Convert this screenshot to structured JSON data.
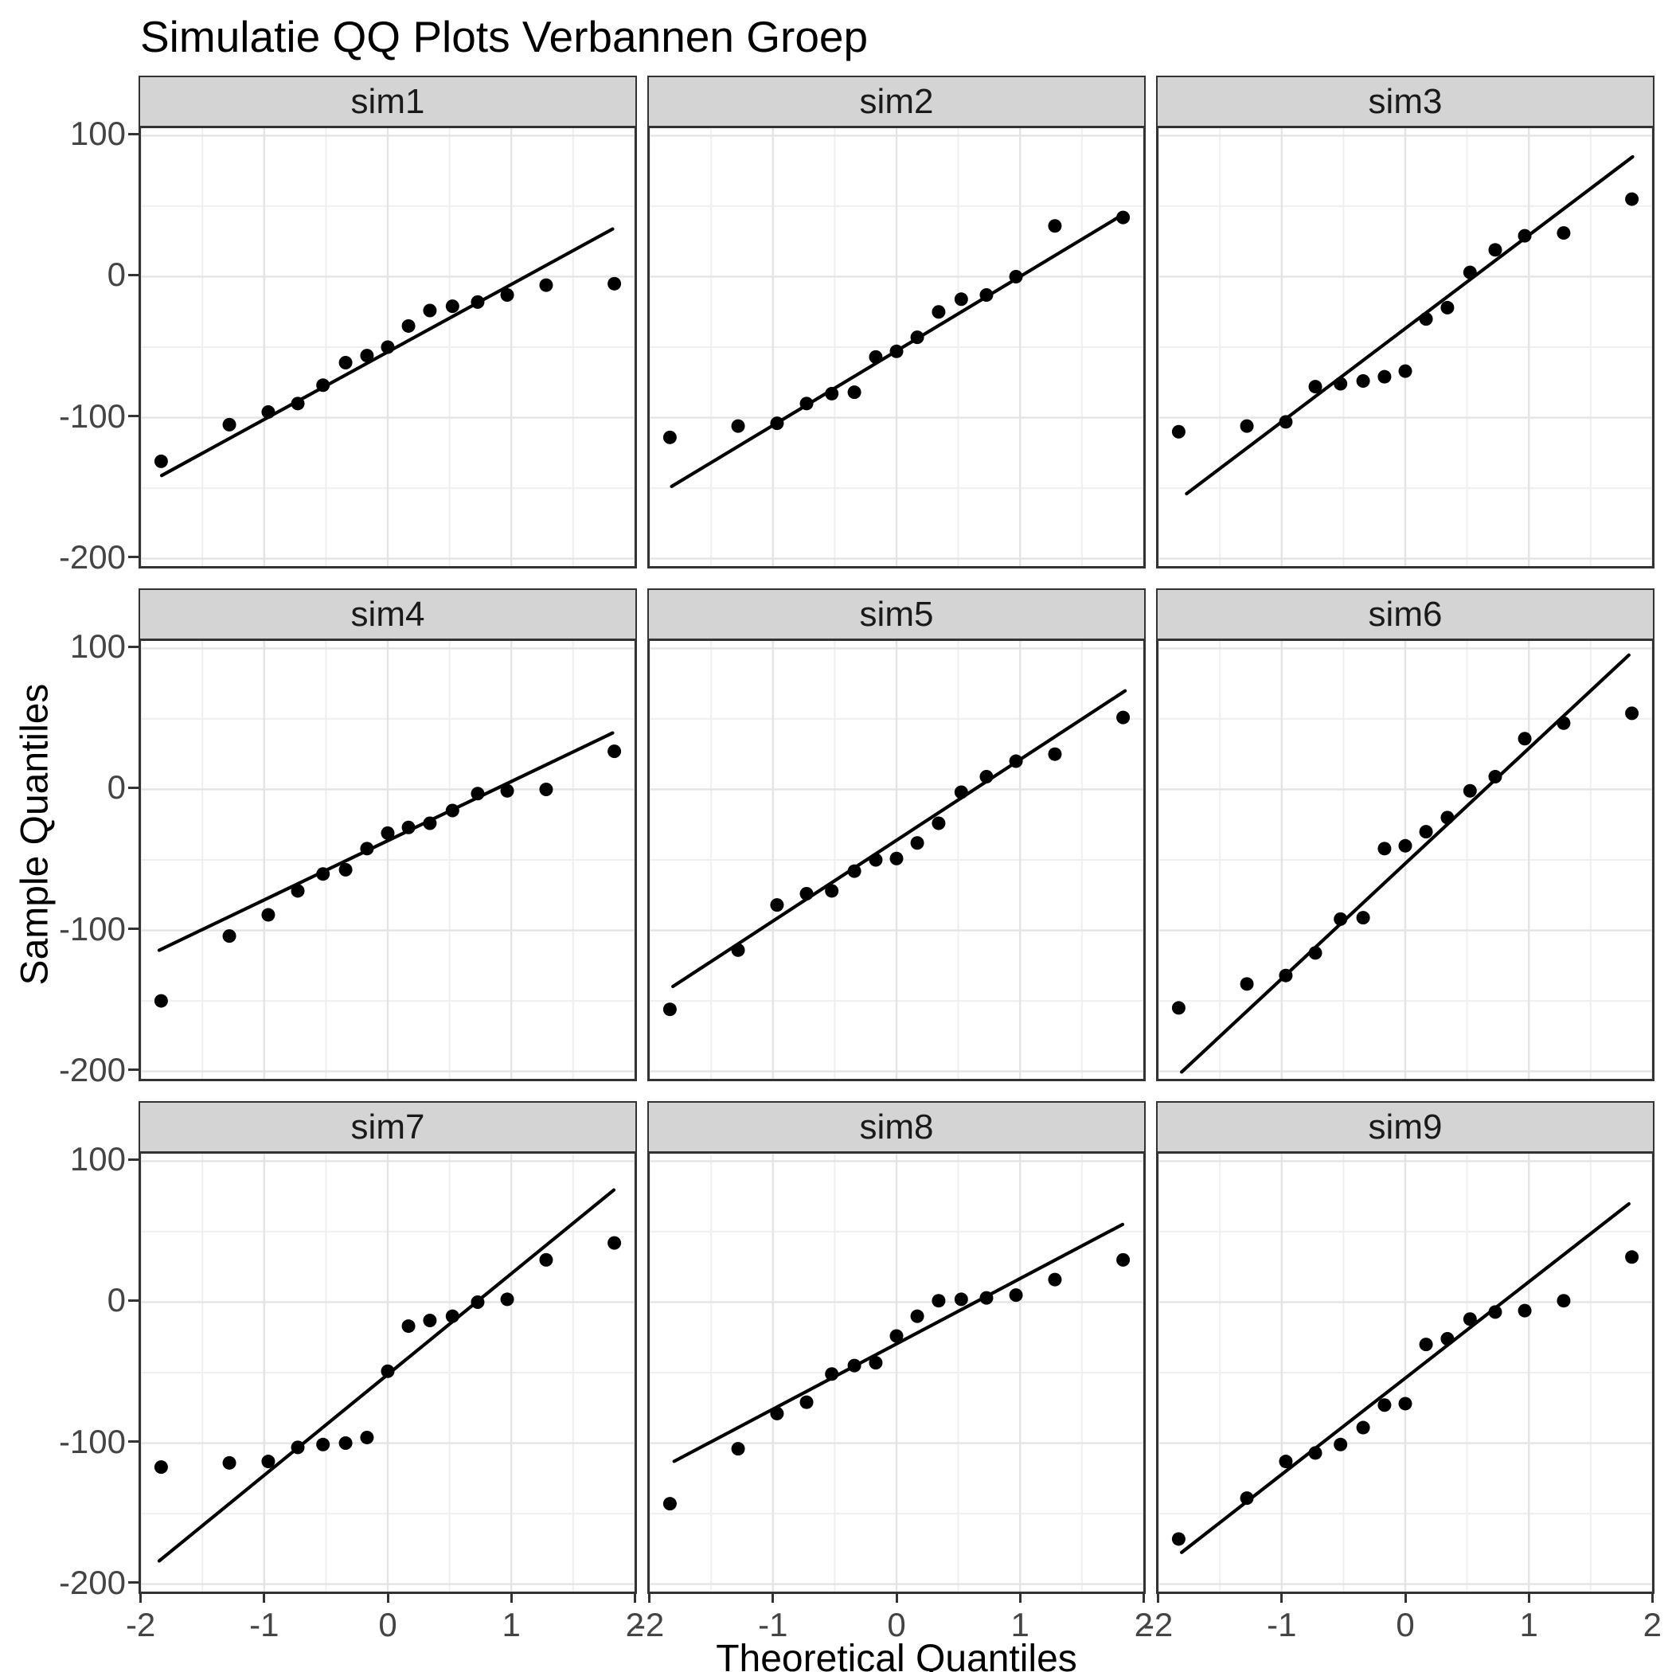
{
  "title": "Simulatie QQ Plots Verbannen Groep",
  "axes": {
    "x_title": "Theoretical Quantiles",
    "y_title": "Sample Quantiles",
    "x_tick_labels": [
      "-2",
      "-1",
      "0",
      "1",
      "2"
    ],
    "x_tick_values": [
      -2,
      -1,
      0,
      1,
      2
    ],
    "y_tick_labels": [
      "100",
      "0",
      "-100",
      "-200"
    ],
    "y_tick_values": [
      100,
      0,
      -100,
      -200
    ],
    "x_minor": [
      -1.5,
      -0.5,
      0.5,
      1.5
    ],
    "y_minor": [
      50,
      -50,
      -150
    ],
    "x_range": [
      -2.017,
      2.017
    ],
    "y_range": [
      -207,
      107
    ],
    "grid": "on",
    "x_labels_bottom_row_only": true,
    "y_labels_left_column_only": true
  },
  "style": {
    "background": "#FFFFFF",
    "strip_fill": "#D4D4D4",
    "strip_text": "#1A1A1A",
    "panel_border": "#333333",
    "grid_major": "#E4E4E4",
    "grid_minor": "#EFEFEF",
    "point_color": "#000000",
    "line_color": "#000000",
    "tick_text": "#444444"
  },
  "chart_data": {
    "type": "scatter",
    "subtype": "qq-plot-facets",
    "title": "Simulatie QQ Plots Verbannen Groep",
    "xlabel": "Theoretical Quantiles",
    "ylabel": "Sample Quantiles",
    "legend": "none",
    "theoretical_quantiles": [
      -1.834,
      -1.282,
      -0.967,
      -0.728,
      -0.524,
      -0.341,
      -0.168,
      0,
      0.168,
      0.341,
      0.524,
      0.728,
      0.967,
      1.282,
      1.834
    ],
    "facets": [
      {
        "label": "sim1",
        "sample_quantiles": [
          -131,
          -105,
          -96,
          -90,
          -77,
          -61,
          -56,
          -50,
          -35,
          -24,
          -21,
          -18,
          -13,
          -6,
          -5
        ],
        "line": {
          "slope": 47.9,
          "intercept": -53.4,
          "x1": -1.83,
          "x2": 1.82
        }
      },
      {
        "label": "sim2",
        "sample_quantiles": [
          -114,
          -106,
          -104,
          -90,
          -83,
          -82,
          -57,
          -53,
          -43,
          -25,
          -16,
          -13,
          0,
          36,
          42
        ],
        "line": {
          "slope": 52.8,
          "intercept": -52.7,
          "x1": -1.82,
          "x2": 1.81
        }
      },
      {
        "label": "sim3",
        "sample_quantiles": [
          -110,
          -106,
          -103,
          -78,
          -76,
          -74,
          -71,
          -67,
          -30,
          -22,
          3,
          19,
          29,
          31,
          55
        ],
        "line": {
          "slope": 66.2,
          "intercept": -36.8,
          "x1": -1.77,
          "x2": 1.84
        }
      },
      {
        "label": "sim4",
        "sample_quantiles": [
          -150,
          -104,
          -89,
          -72,
          -60,
          -57,
          -42,
          -31,
          -27,
          -24,
          -15,
          -3,
          -1,
          0,
          27
        ],
        "line": {
          "slope": 42.0,
          "intercept": -36.4,
          "x1": -1.85,
          "x2": 1.82
        }
      },
      {
        "label": "sim5",
        "sample_quantiles": [
          -156,
          -114,
          -82,
          -74,
          -72,
          -58,
          -50,
          -49,
          -38,
          -24,
          -2,
          9,
          20,
          25,
          51
        ],
        "line": {
          "slope": 57.3,
          "intercept": -36.1,
          "x1": -1.81,
          "x2": 1.85
        }
      },
      {
        "label": "sim6",
        "sample_quantiles": [
          -155,
          -138,
          -132,
          -116,
          -92,
          -91,
          -42,
          -40,
          -30,
          -20,
          -1,
          9,
          36,
          47,
          54
        ],
        "line": {
          "slope": 81.7,
          "intercept": -52.6,
          "x1": -1.81,
          "x2": 1.81
        }
      },
      {
        "label": "sim7",
        "sample_quantiles": [
          -117,
          -114,
          -113,
          -103,
          -101,
          -100,
          -96,
          -49,
          -17,
          -13,
          -10,
          0,
          2,
          30,
          42
        ],
        "line": {
          "slope": 71.5,
          "intercept": -51.3,
          "x1": -1.85,
          "x2": 1.83
        }
      },
      {
        "label": "sim8",
        "sample_quantiles": [
          -143,
          -104,
          -79,
          -71,
          -51,
          -45,
          -43,
          -24,
          -10,
          1,
          2,
          3,
          5,
          16,
          30
        ],
        "line": {
          "slope": 46.3,
          "intercept": -29.6,
          "x1": -1.8,
          "x2": 1.83
        }
      },
      {
        "label": "sim9",
        "sample_quantiles": [
          -168,
          -139,
          -113,
          -107,
          -101,
          -89,
          -73,
          -72,
          -30,
          -26,
          -12,
          -7,
          -6,
          1,
          32
        ],
        "line": {
          "slope": 68.3,
          "intercept": -53.9,
          "x1": -1.81,
          "x2": 1.81
        }
      }
    ]
  }
}
